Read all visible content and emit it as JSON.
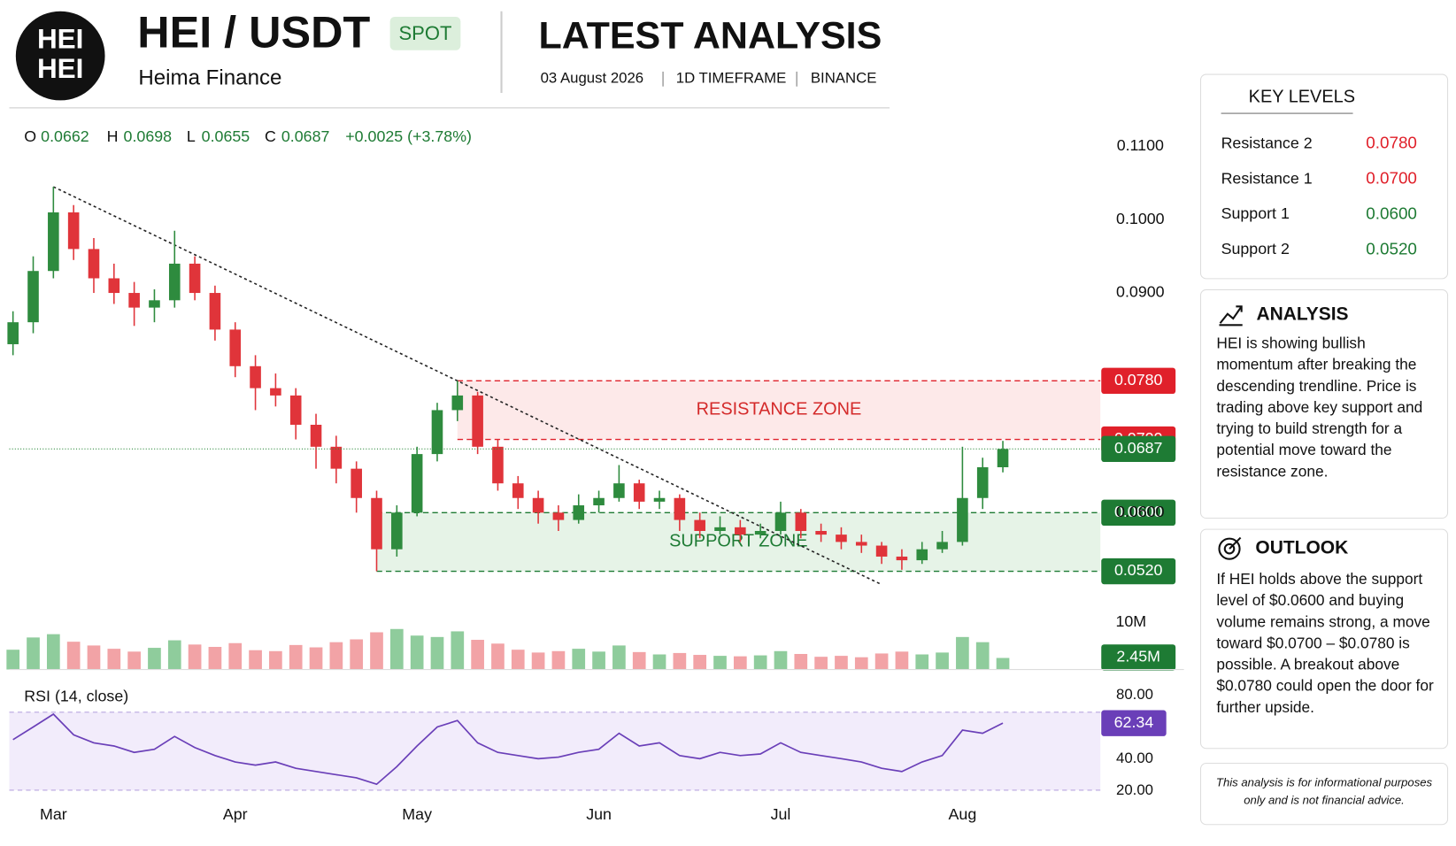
{
  "header": {
    "logo_text": "HEI",
    "pair": "HEI / USDT",
    "badge": "SPOT",
    "company": "Heima Finance",
    "title": "LATEST ANALYSIS",
    "date": "03 August 2026",
    "timeframe": "1D TIMEFRAME",
    "exchange": "BINANCE"
  },
  "key_levels": {
    "title": "KEY LEVELS"
  },
  "analysis": {
    "title": "ANALYSIS",
    "text": "HEI is showing bullish momentum after breaking the descending trendline. Price is trading above key support and trying to build strength for a potential move toward the resistance zone."
  },
  "outlook": {
    "title": "OUTLOOK",
    "text": "If HEI holds above the support level of $0.0600 and buying volume remains strong, a move toward $0.0700 – $0.0780 is possible. A breakout above $0.0780 could open the door for further upside."
  },
  "disclaimer": "This analysis is for informational purposes only and is not financial advice.",
  "chart_data": {
    "type": "candlestick",
    "legend_keys": [
      "O",
      "H",
      "L",
      "C"
    ],
    "change_label": "+0.0025 (+3.78%)",
    "up_color": "#2e8b3e",
    "down_color": "#e0343a",
    "ylim": [
      0.0505,
      0.113
    ],
    "yticks": [
      {
        "value": 0.11,
        "label": "0.1100"
      },
      {
        "value": 0.1,
        "label": "0.1000"
      },
      {
        "value": 0.09,
        "label": "0.0900"
      },
      {
        "value": 0.06,
        "label": "0.0600"
      }
    ],
    "categories": [
      null,
      null,
      "Mar",
      null,
      null,
      null,
      null,
      null,
      null,
      null,
      null,
      "Apr",
      null,
      null,
      null,
      null,
      null,
      null,
      null,
      null,
      "May",
      null,
      null,
      null,
      null,
      null,
      null,
      null,
      null,
      "Jun",
      null,
      null,
      null,
      null,
      null,
      null,
      null,
      null,
      "Jul",
      null,
      null,
      null,
      null,
      null,
      null,
      null,
      null,
      "Aug",
      null,
      null
    ],
    "candles": [
      {
        "o": 0.083,
        "h": 0.0875,
        "l": 0.0815,
        "c": 0.086
      },
      {
        "o": 0.086,
        "h": 0.095,
        "l": 0.0845,
        "c": 0.093
      },
      {
        "o": 0.093,
        "h": 0.1045,
        "l": 0.092,
        "c": 0.101
      },
      {
        "o": 0.101,
        "h": 0.102,
        "l": 0.0945,
        "c": 0.096
      },
      {
        "o": 0.096,
        "h": 0.0975,
        "l": 0.09,
        "c": 0.092
      },
      {
        "o": 0.092,
        "h": 0.094,
        "l": 0.0885,
        "c": 0.09
      },
      {
        "o": 0.09,
        "h": 0.0915,
        "l": 0.0855,
        "c": 0.088
      },
      {
        "o": 0.088,
        "h": 0.0905,
        "l": 0.086,
        "c": 0.089
      },
      {
        "o": 0.089,
        "h": 0.0985,
        "l": 0.088,
        "c": 0.094
      },
      {
        "o": 0.094,
        "h": 0.095,
        "l": 0.089,
        "c": 0.09
      },
      {
        "o": 0.09,
        "h": 0.091,
        "l": 0.0835,
        "c": 0.085
      },
      {
        "o": 0.085,
        "h": 0.086,
        "l": 0.0785,
        "c": 0.08
      },
      {
        "o": 0.08,
        "h": 0.0815,
        "l": 0.074,
        "c": 0.077
      },
      {
        "o": 0.077,
        "h": 0.079,
        "l": 0.0745,
        "c": 0.076
      },
      {
        "o": 0.076,
        "h": 0.077,
        "l": 0.07,
        "c": 0.072
      },
      {
        "o": 0.072,
        "h": 0.0735,
        "l": 0.066,
        "c": 0.069
      },
      {
        "o": 0.069,
        "h": 0.0705,
        "l": 0.064,
        "c": 0.066
      },
      {
        "o": 0.066,
        "h": 0.067,
        "l": 0.06,
        "c": 0.062
      },
      {
        "o": 0.062,
        "h": 0.063,
        "l": 0.052,
        "c": 0.055
      },
      {
        "o": 0.055,
        "h": 0.061,
        "l": 0.054,
        "c": 0.06
      },
      {
        "o": 0.06,
        "h": 0.069,
        "l": 0.0595,
        "c": 0.068
      },
      {
        "o": 0.068,
        "h": 0.075,
        "l": 0.067,
        "c": 0.074
      },
      {
        "o": 0.074,
        "h": 0.078,
        "l": 0.0725,
        "c": 0.076
      },
      {
        "o": 0.076,
        "h": 0.0765,
        "l": 0.068,
        "c": 0.069
      },
      {
        "o": 0.069,
        "h": 0.07,
        "l": 0.063,
        "c": 0.064
      },
      {
        "o": 0.064,
        "h": 0.065,
        "l": 0.0605,
        "c": 0.062
      },
      {
        "o": 0.062,
        "h": 0.063,
        "l": 0.0585,
        "c": 0.06
      },
      {
        "o": 0.06,
        "h": 0.061,
        "l": 0.0575,
        "c": 0.059
      },
      {
        "o": 0.059,
        "h": 0.0625,
        "l": 0.0585,
        "c": 0.061
      },
      {
        "o": 0.061,
        "h": 0.063,
        "l": 0.06,
        "c": 0.062
      },
      {
        "o": 0.062,
        "h": 0.0665,
        "l": 0.0615,
        "c": 0.064
      },
      {
        "o": 0.064,
        "h": 0.0645,
        "l": 0.0605,
        "c": 0.0615
      },
      {
        "o": 0.0615,
        "h": 0.063,
        "l": 0.0605,
        "c": 0.062
      },
      {
        "o": 0.062,
        "h": 0.0625,
        "l": 0.0575,
        "c": 0.059
      },
      {
        "o": 0.059,
        "h": 0.06,
        "l": 0.0565,
        "c": 0.0575
      },
      {
        "o": 0.0575,
        "h": 0.0595,
        "l": 0.057,
        "c": 0.058
      },
      {
        "o": 0.058,
        "h": 0.059,
        "l": 0.056,
        "c": 0.057
      },
      {
        "o": 0.057,
        "h": 0.0585,
        "l": 0.0565,
        "c": 0.0575
      },
      {
        "o": 0.0575,
        "h": 0.0615,
        "l": 0.057,
        "c": 0.06
      },
      {
        "o": 0.06,
        "h": 0.0605,
        "l": 0.0565,
        "c": 0.0575
      },
      {
        "o": 0.0575,
        "h": 0.0585,
        "l": 0.056,
        "c": 0.057
      },
      {
        "o": 0.057,
        "h": 0.058,
        "l": 0.055,
        "c": 0.056
      },
      {
        "o": 0.056,
        "h": 0.057,
        "l": 0.0545,
        "c": 0.0555
      },
      {
        "o": 0.0555,
        "h": 0.056,
        "l": 0.053,
        "c": 0.054
      },
      {
        "o": 0.054,
        "h": 0.055,
        "l": 0.0522,
        "c": 0.0535
      },
      {
        "o": 0.0535,
        "h": 0.056,
        "l": 0.053,
        "c": 0.055
      },
      {
        "o": 0.055,
        "h": 0.0575,
        "l": 0.0545,
        "c": 0.056
      },
      {
        "o": 0.056,
        "h": 0.069,
        "l": 0.0555,
        "c": 0.062
      },
      {
        "o": 0.062,
        "h": 0.0675,
        "l": 0.0605,
        "c": 0.0662
      },
      {
        "o": 0.0662,
        "h": 0.0698,
        "l": 0.0655,
        "c": 0.0687
      }
    ],
    "levels": [
      {
        "name": "Resistance 2",
        "value": 0.078,
        "label": "0.0780",
        "color": "#e0202a"
      },
      {
        "name": "Resistance 1",
        "value": 0.07,
        "label": "0.0700",
        "color": "#e0202a"
      },
      {
        "name": "Support 1",
        "value": 0.06,
        "label": "0.0600",
        "color": "#1e7b34"
      },
      {
        "name": "Support 2",
        "value": 0.052,
        "label": "0.0520",
        "color": "#1e7b34"
      }
    ],
    "zones": [
      {
        "name": "RESISTANCE ZONE",
        "levels": [
          0,
          1
        ],
        "color": "#fde9e9",
        "text_color": "#d42a2a"
      },
      {
        "name": "SUPPORT ZONE",
        "levels": [
          2,
          3
        ],
        "color": "#e6f3e7",
        "text_color": "#1e7b34"
      }
    ],
    "volume": {
      "ylim": [
        0,
        14
      ],
      "yticks": [
        {
          "value": 10,
          "label": "10M"
        }
      ],
      "values": [
        4.2,
        6.8,
        7.5,
        5.9,
        5.1,
        4.4,
        3.8,
        4.6,
        6.2,
        5.3,
        4.8,
        5.6,
        4.1,
        3.9,
        5.2,
        4.7,
        5.8,
        6.4,
        7.9,
        8.6,
        7.2,
        6.9,
        8.1,
        6.3,
        5.5,
        4.2,
        3.6,
        3.9,
        4.4,
        3.8,
        5.1,
        3.7,
        3.2,
        3.5,
        3.1,
        2.9,
        2.8,
        3.0,
        3.9,
        3.3,
        2.7,
        2.9,
        2.6,
        3.4,
        3.8,
        3.2,
        3.6,
        6.9,
        5.8,
        2.45
      ],
      "value_labels": [
        null,
        null,
        null,
        null,
        null,
        null,
        null,
        null,
        null,
        null,
        null,
        null,
        null,
        null,
        null,
        null,
        null,
        null,
        null,
        null,
        null,
        null,
        null,
        null,
        null,
        null,
        null,
        null,
        null,
        null,
        null,
        null,
        null,
        null,
        null,
        null,
        null,
        null,
        null,
        null,
        null,
        null,
        null,
        null,
        null,
        null,
        null,
        null,
        null,
        "2.45M"
      ]
    },
    "rsi": {
      "name": "RSI (14, close)",
      "color": "#6a3fb8",
      "ylim": [
        15,
        85
      ],
      "yticks": [
        {
          "value": 20,
          "label": "20.00"
        },
        {
          "value": 40,
          "label": "40.00"
        },
        {
          "value": 80,
          "label": "80.00"
        }
      ],
      "values": [
        52,
        60,
        68,
        55,
        50,
        48,
        44,
        46,
        54,
        47,
        42,
        38,
        36,
        38,
        34,
        32,
        30,
        28,
        24,
        35,
        48,
        60,
        64,
        50,
        44,
        42,
        40,
        41,
        44,
        46,
        56,
        48,
        50,
        42,
        40,
        44,
        42,
        43,
        50,
        44,
        42,
        40,
        38,
        34,
        32,
        38,
        42,
        58,
        56,
        62.34
      ]
    }
  }
}
